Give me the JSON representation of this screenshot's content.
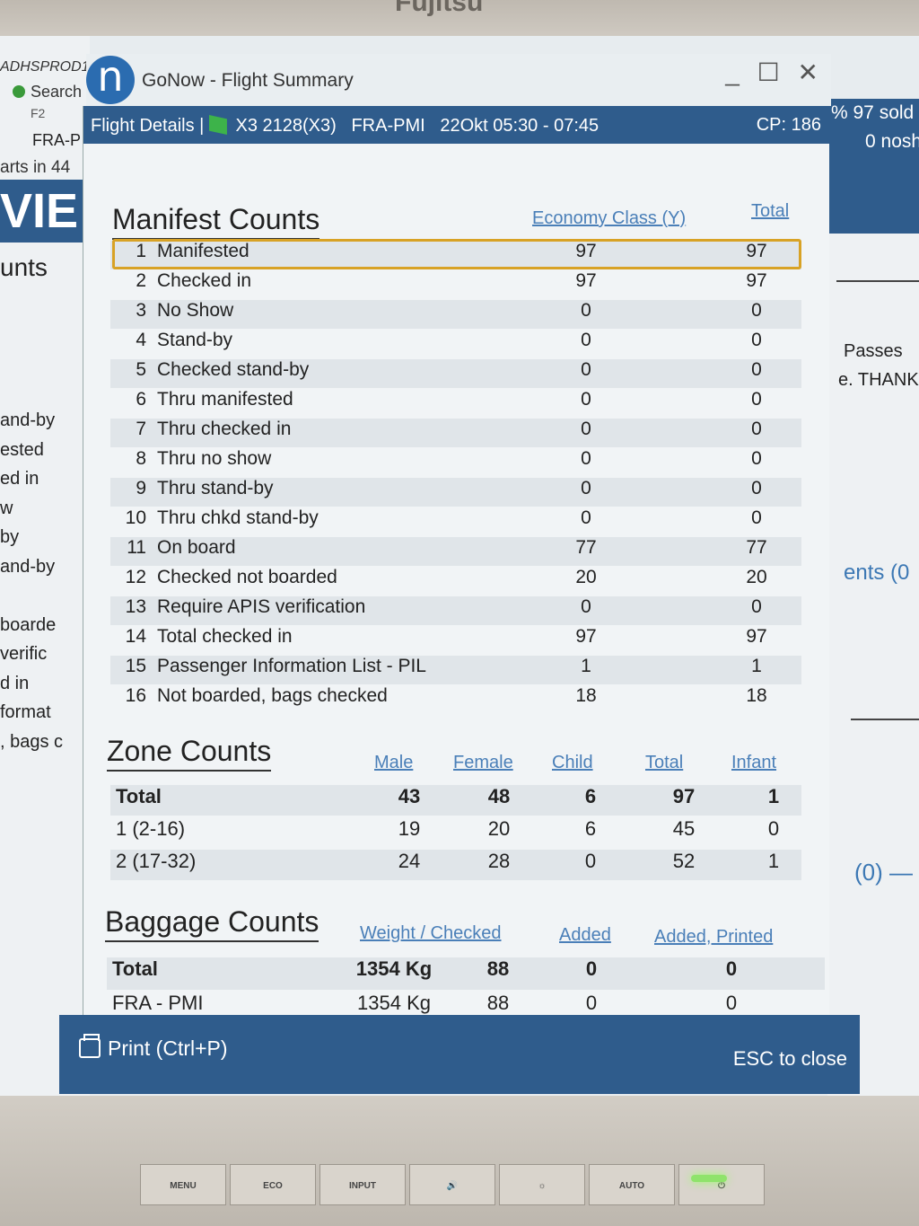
{
  "monitor": {
    "brand": "Fujitsu",
    "buttons": [
      "MENU",
      "ECO",
      "INPUT",
      "🔊",
      "☼",
      "AUTO",
      "⏻"
    ]
  },
  "background_app": {
    "app_id": "ADHSPROD1",
    "search_label": "Search",
    "f2_label": "F2",
    "route_fragment": "FRA-P",
    "departs_fragment": "arts in 44",
    "vie_fragment": "VIE",
    "counts_fragment": "unts",
    "left_list": [
      "and-by",
      "ested",
      "ed in",
      "w",
      "by",
      "and-by",
      "",
      "boarde",
      "verific",
      "d in",
      "format",
      ", bags c"
    ],
    "sold_fragment": "% 97 sold",
    "noshow_fragment": "0 nosh",
    "passes_fragment": "Passes",
    "thank_fragment": "e. THANK",
    "comments_fragment": "ents (0",
    "zero_fragment": "(0) —"
  },
  "window": {
    "title": "GoNow - Flight Summary",
    "logo_letter": "n",
    "controls": {
      "minimize": "_",
      "maximize": "☐",
      "close": "✕"
    }
  },
  "dialog": {
    "header_prefix": "Flight Details |",
    "flight": "X3 2128(X3)",
    "route": "FRA-PMI",
    "date_time": "22Okt 05:30 - 07:45",
    "cp": "CP: 186"
  },
  "manifest": {
    "title": "Manifest Counts",
    "col_economy": "Economy Class (Y)",
    "col_total": "Total",
    "rows": [
      {
        "n": "1",
        "label": "Manifested",
        "y": "97",
        "total": "97"
      },
      {
        "n": "2",
        "label": "Checked in",
        "y": "97",
        "total": "97"
      },
      {
        "n": "3",
        "label": "No Show",
        "y": "0",
        "total": "0"
      },
      {
        "n": "4",
        "label": "Stand-by",
        "y": "0",
        "total": "0"
      },
      {
        "n": "5",
        "label": "Checked stand-by",
        "y": "0",
        "total": "0"
      },
      {
        "n": "6",
        "label": "Thru manifested",
        "y": "0",
        "total": "0"
      },
      {
        "n": "7",
        "label": "Thru checked in",
        "y": "0",
        "total": "0"
      },
      {
        "n": "8",
        "label": "Thru no show",
        "y": "0",
        "total": "0"
      },
      {
        "n": "9",
        "label": "Thru stand-by",
        "y": "0",
        "total": "0"
      },
      {
        "n": "10",
        "label": "Thru chkd stand-by",
        "y": "0",
        "total": "0"
      },
      {
        "n": "11",
        "label": "On board",
        "y": "77",
        "total": "77"
      },
      {
        "n": "12",
        "label": "Checked not boarded",
        "y": "20",
        "total": "20"
      },
      {
        "n": "13",
        "label": "Require APIS verification",
        "y": "0",
        "total": "0"
      },
      {
        "n": "14",
        "label": "Total checked in",
        "y": "97",
        "total": "97"
      },
      {
        "n": "15",
        "label": "Passenger Information List - PIL",
        "y": "1",
        "total": "1"
      },
      {
        "n": "16",
        "label": "Not boarded, bags checked",
        "y": "18",
        "total": "18"
      }
    ]
  },
  "zones": {
    "title": "Zone Counts",
    "columns": [
      "Male",
      "Female",
      "Child",
      "Total",
      "Infant"
    ],
    "rows": [
      {
        "label": "Total",
        "male": "43",
        "female": "48",
        "child": "6",
        "total": "97",
        "infant": "1"
      },
      {
        "label": "1 (2-16)",
        "male": "19",
        "female": "20",
        "child": "6",
        "total": "45",
        "infant": "0"
      },
      {
        "label": "2 (17-32)",
        "male": "24",
        "female": "28",
        "child": "0",
        "total": "52",
        "infant": "1"
      }
    ]
  },
  "baggage": {
    "title": "Baggage Counts",
    "col_weight_checked": "Weight / Checked",
    "col_added": "Added",
    "col_added_printed": "Added, Printed",
    "rows": [
      {
        "label": "Total",
        "weight": "1354 Kg",
        "checked": "88",
        "added": "0",
        "added_printed": "0"
      },
      {
        "label": "FRA - PMI",
        "weight": "1354 Kg",
        "checked": "88",
        "added": "0",
        "added_printed": "0"
      }
    ]
  },
  "footer": {
    "print": "Print (Ctrl+P)",
    "esc": "ESC to close"
  }
}
